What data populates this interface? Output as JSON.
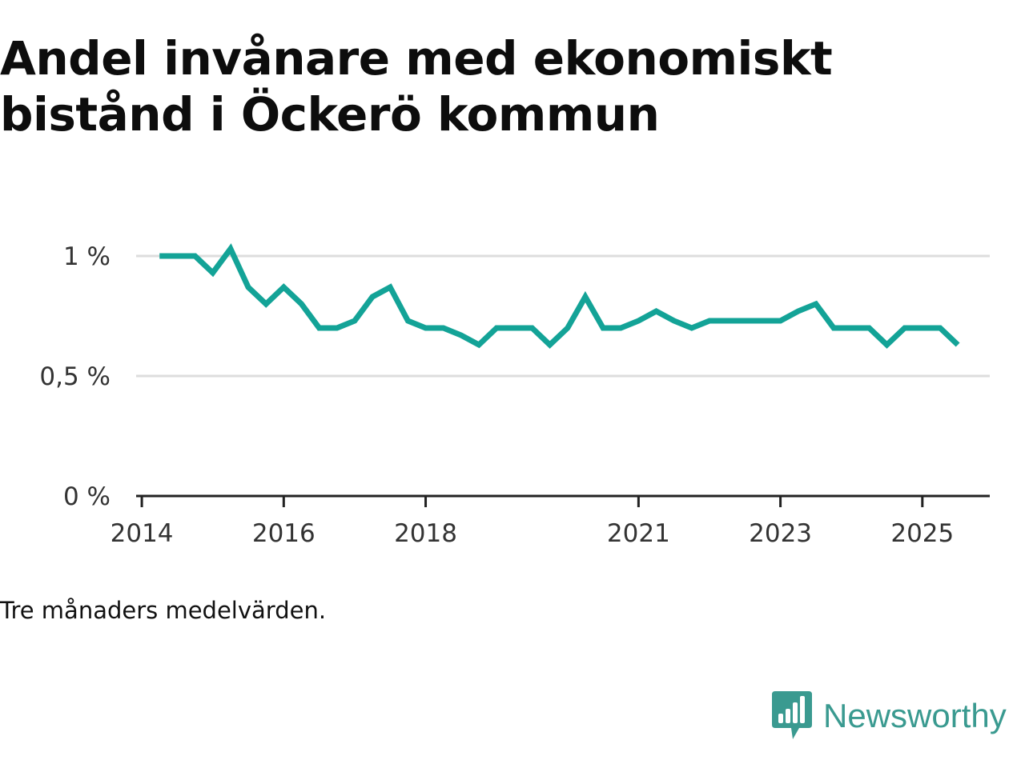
{
  "colors": {
    "line": "#13a397",
    "brand": "#3a9a90",
    "grid": "#dddddd",
    "axis": "#222222"
  },
  "note": "Tre månaders medelvärden.",
  "brand": {
    "name": "Newsworthy",
    "icon": "bar-chart-speech-icon"
  },
  "chart_data": {
    "type": "line",
    "title": "Andel invånare med ekonomiskt bistånd i Öckerö kommun",
    "xlabel": "",
    "ylabel": "",
    "xlim": [
      2013.92,
      2025.95
    ],
    "ylim": [
      0,
      1
    ],
    "grid": true,
    "legend": "none",
    "y_ticks": [
      0,
      0.5,
      1
    ],
    "y_tick_labels": [
      "0 %",
      "0,5 %",
      "1 %"
    ],
    "x_ticks": [
      2014,
      2016,
      2018,
      2021,
      2023,
      2025
    ],
    "x_tick_labels": [
      "2014",
      "2016",
      "2018",
      "2021",
      "2023",
      "2025"
    ],
    "series": [
      {
        "name": "Andel invånare med ekonomiskt bistånd",
        "x": [
          2014.25,
          2014.5,
          2014.75,
          2015.0,
          2015.25,
          2015.5,
          2015.75,
          2016.0,
          2016.25,
          2016.5,
          2016.75,
          2017.0,
          2017.25,
          2017.5,
          2017.75,
          2018.0,
          2018.25,
          2018.5,
          2018.75,
          2019.0,
          2019.25,
          2019.5,
          2019.75,
          2020.0,
          2020.25,
          2020.5,
          2020.75,
          2021.0,
          2021.25,
          2021.5,
          2021.75,
          2022.0,
          2022.25,
          2022.5,
          2022.75,
          2023.0,
          2023.25,
          2023.5,
          2023.75,
          2024.0,
          2024.25,
          2024.5,
          2024.75,
          2025.0,
          2025.25,
          2025.5
        ],
        "values": [
          1.0,
          1.0,
          1.0,
          0.93,
          1.03,
          0.87,
          0.8,
          0.87,
          0.8,
          0.7,
          0.7,
          0.73,
          0.83,
          0.87,
          0.73,
          0.7,
          0.7,
          0.67,
          0.63,
          0.7,
          0.7,
          0.7,
          0.63,
          0.7,
          0.83,
          0.7,
          0.7,
          0.73,
          0.77,
          0.73,
          0.7,
          0.73,
          0.73,
          0.73,
          0.73,
          0.73,
          0.77,
          0.8,
          0.7,
          0.7,
          0.7,
          0.63,
          0.7,
          0.7,
          0.7,
          0.63
        ]
      }
    ]
  }
}
